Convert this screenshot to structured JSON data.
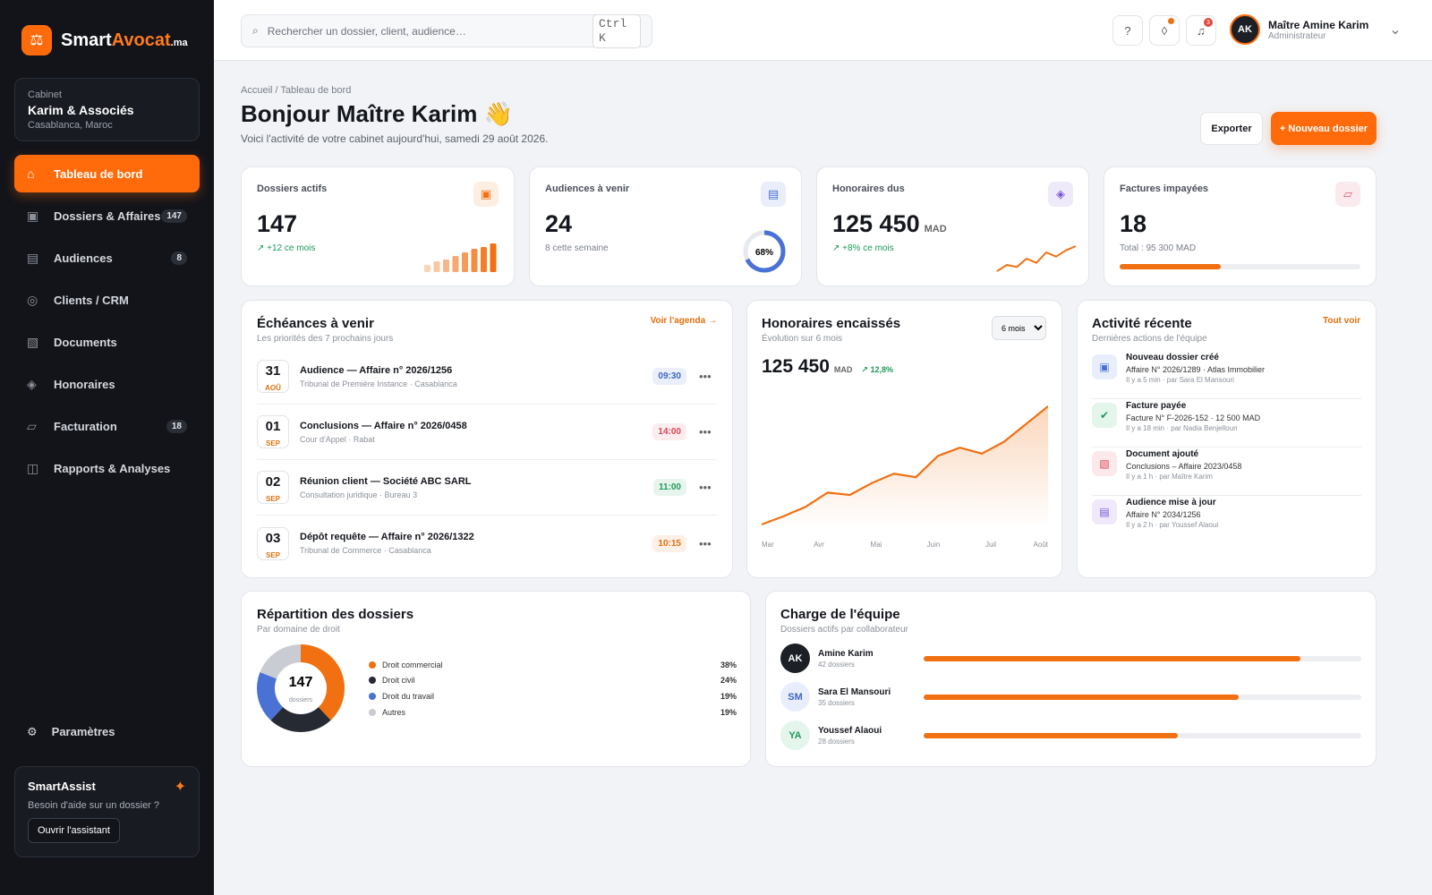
{
  "brand": {
    "a": "Smart",
    "b": "Avocat",
    "suffix": ".ma"
  },
  "cabinet": {
    "label": "Cabinet",
    "name": "Karim & Associés",
    "city": "Casablanca, Maroc"
  },
  "nav": [
    {
      "icon": "⌂",
      "label": "Tableau de bord",
      "active": true
    },
    {
      "icon": "▣",
      "label": "Dossiers & Affaires",
      "badge": 147
    },
    {
      "icon": "▤",
      "label": "Audiences",
      "badge": 8
    },
    {
      "icon": "◎",
      "label": "Clients / CRM"
    },
    {
      "icon": "▧",
      "label": "Documents"
    },
    {
      "icon": "◈",
      "label": "Honoraires"
    },
    {
      "icon": "▱",
      "label": "Facturation",
      "badge": 18
    },
    {
      "icon": "◫",
      "label": "Rapports & Analyses"
    }
  ],
  "settings": "Paramètres",
  "assist": {
    "title": "SmartAssist",
    "text": "Besoin d'aide sur un dossier ?",
    "button": "Ouvrir l'assistant"
  },
  "search": {
    "placeholder": "Rechercher un dossier, client, audience…",
    "shortcut": "Ctrl K"
  },
  "notifications": 3,
  "user": {
    "initials": "AK",
    "name": "Maître Amine Karim",
    "role": "Administrateur"
  },
  "breadcrumb": "Accueil / Tableau de bord",
  "greeting": "Bonjour Maître Karim 👋",
  "subtitle": "Voici l'activité de votre cabinet aujourd'hui, samedi 29 août 2026.",
  "actions": {
    "export": "Exporter",
    "new": "+ Nouveau dossier"
  },
  "kpis": [
    {
      "label": "Dossiers actifs",
      "icon": "▣",
      "color": "#f07012",
      "value": 147,
      "note": "↗ +12 ce mois",
      "bars": [
        8,
        12,
        14,
        18,
        22,
        26,
        28,
        32
      ]
    },
    {
      "label": "Audiences à venir",
      "icon": "▤",
      "color": "#4a72d4",
      "value": 24,
      "note": "8 cette semaine",
      "ring": 68,
      "ring_label": "68%"
    },
    {
      "label": "Honoraires dus",
      "icon": "◈",
      "color": "#7c55d6",
      "value": "125 450",
      "unit": "MAD",
      "note": "↗ +8% ce mois",
      "spark": [
        2,
        8,
        6,
        14,
        10,
        20,
        16,
        22,
        26
      ]
    },
    {
      "label": "Factures impayées",
      "icon": "▱",
      "color": "#e0566a",
      "value": 18,
      "note": "Total : 95 300 MAD",
      "progress": 42
    }
  ],
  "deadlines": {
    "title": "Échéances à venir",
    "subtitle": "Les priorités des 7 prochains jours",
    "link": "Voir l'agenda →",
    "items": [
      {
        "day": "31",
        "month": "AOÛ",
        "title": "Audience — Affaire n° 2026/1256",
        "detail": "Tribunal de Première Instance · Casablanca",
        "time": "09:30",
        "color": "#3f66c8"
      },
      {
        "day": "01",
        "month": "SEP",
        "title": "Conclusions — Affaire n° 2026/0458",
        "detail": "Cour d'Appel · Rabat",
        "time": "14:00",
        "color": "#d9485a"
      },
      {
        "day": "02",
        "month": "SEP",
        "title": "Réunion client — Société ABC SARL",
        "detail": "Consultation juridique · Bureau 3",
        "time": "11:00",
        "color": "#1f9a5a"
      },
      {
        "day": "03",
        "month": "SEP",
        "title": "Dépôt requête — Affaire n° 2026/1322",
        "detail": "Tribunal de Commerce · Casablanca",
        "time": "10:15",
        "color": "#e0700f"
      }
    ]
  },
  "fees": {
    "title": "Honoraires encaissés",
    "subtitle": "Évolution sur 6 mois",
    "period": "6 mois",
    "value": "125 450",
    "unit": "MAD",
    "trend": "↗ 12,8%",
    "months": [
      "Mar",
      "Avr",
      "Mai",
      "Juin",
      "Juil",
      "Août"
    ],
    "values": [
      45,
      52,
      60,
      72,
      70,
      80,
      88,
      85,
      103,
      110,
      105,
      115,
      130,
      145
    ]
  },
  "activity": {
    "title": "Activité récente",
    "subtitle": "Dernières actions de l'équipe",
    "link": "Tout voir",
    "items": [
      {
        "icon": "▣",
        "color": "#4a72d4",
        "bg": "#e8eefb",
        "title": "Nouveau dossier créé",
        "detail": "Affaire N° 2026/1289 · Atlas Immobilier",
        "meta": "Il y a 5 min · par Sara El Mansouri"
      },
      {
        "icon": "✔",
        "color": "#1f9a5a",
        "bg": "#e4f5ec",
        "title": "Facture payée",
        "detail": "Facture N° F-2026-152 · 12 500 MAD",
        "meta": "Il y a 18 min · par Nadia Benjelloun"
      },
      {
        "icon": "▧",
        "color": "#d9485a",
        "bg": "#fce9ec",
        "title": "Document ajouté",
        "detail": "Conclusions – Affaire 2023/0458",
        "meta": "Il y a 1 h · par Maître Karim"
      },
      {
        "icon": "▤",
        "color": "#7c55d6",
        "bg": "#efe9fb",
        "title": "Audience mise à jour",
        "detail": "Affaire N° 2034/1256",
        "meta": "Il y a 2 h · par Youssef Alaoui"
      }
    ]
  },
  "distribution": {
    "title": "Répartition des dossiers",
    "subtitle": "Par domaine de droit",
    "total": 147,
    "total_label": "dossiers",
    "slices": [
      {
        "name": "Droit commercial",
        "value": 38,
        "label": "38%",
        "color": "#f07012"
      },
      {
        "name": "Droit civil",
        "value": 24,
        "label": "24%",
        "color": "#262a33"
      },
      {
        "name": "Droit du travail",
        "value": 19,
        "label": "19%",
        "color": "#4a72d4"
      },
      {
        "name": "Autres",
        "value": 19,
        "label": "19%",
        "color": "#c9ccd2"
      }
    ]
  },
  "team": {
    "title": "Charge de l'équipe",
    "subtitle": "Dossiers actifs par collaborateur",
    "members": [
      {
        "initials": "AK",
        "name": "Amine Karim",
        "count": "42 dossiers",
        "load": 86,
        "fg": "#ffffff",
        "bg": "#1c1f26"
      },
      {
        "initials": "SM",
        "name": "Sara El Mansouri",
        "count": "35 dossiers",
        "load": 72,
        "fg": "#3f66c8",
        "bg": "#e8eefb"
      },
      {
        "initials": "YA",
        "name": "Youssef Alaoui",
        "count": "28 dossiers",
        "load": 58,
        "fg": "#1f9a5a",
        "bg": "#e4f5ec"
      }
    ]
  }
}
